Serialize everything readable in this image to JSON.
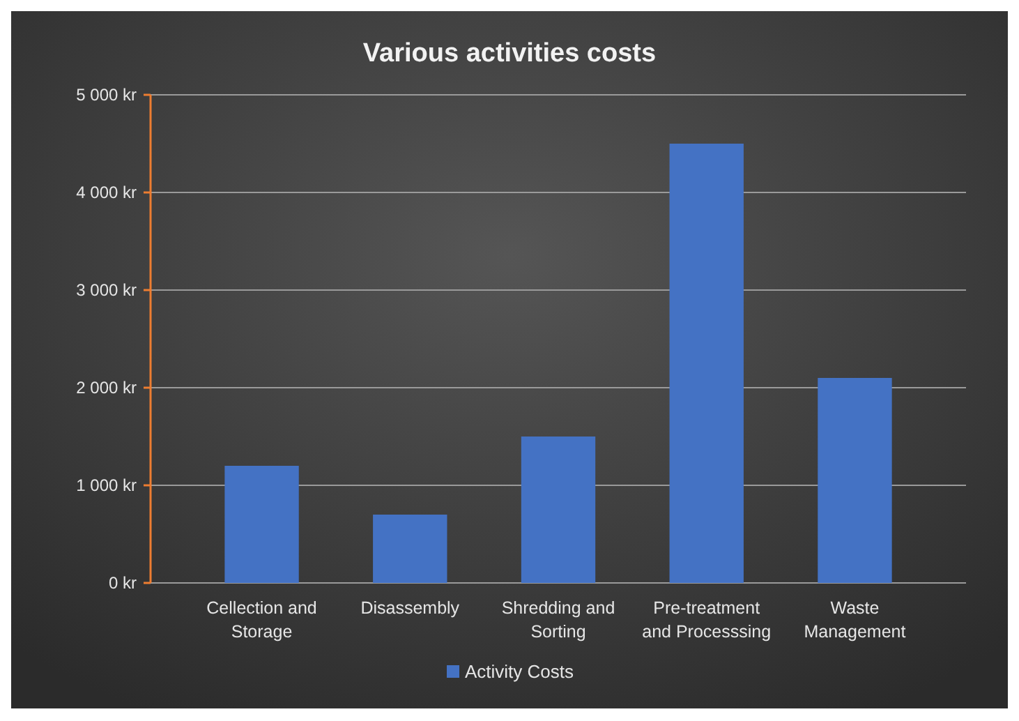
{
  "chart_data": {
    "type": "bar",
    "title": "Various activities costs",
    "categories": [
      "Cellection and Storage",
      "Disassembly",
      "Shredding and Sorting",
      "Pre-treatment and Processsing",
      "Waste Management"
    ],
    "series": [
      {
        "name": "Activity Costs",
        "color": "#4472c4",
        "values": [
          1200,
          700,
          1500,
          4500,
          2100
        ]
      }
    ],
    "ylim": [
      0,
      5000
    ],
    "yticks": [
      {
        "value": 0,
        "label": "0 kr"
      },
      {
        "value": 1000,
        "label": "1 000 kr"
      },
      {
        "value": 2000,
        "label": "2 000 kr"
      },
      {
        "value": 3000,
        "label": "3 000 kr"
      },
      {
        "value": 4000,
        "label": "4 000 kr"
      },
      {
        "value": 5000,
        "label": "5 000 kr"
      }
    ],
    "grid": "y",
    "legend": "bottom"
  }
}
